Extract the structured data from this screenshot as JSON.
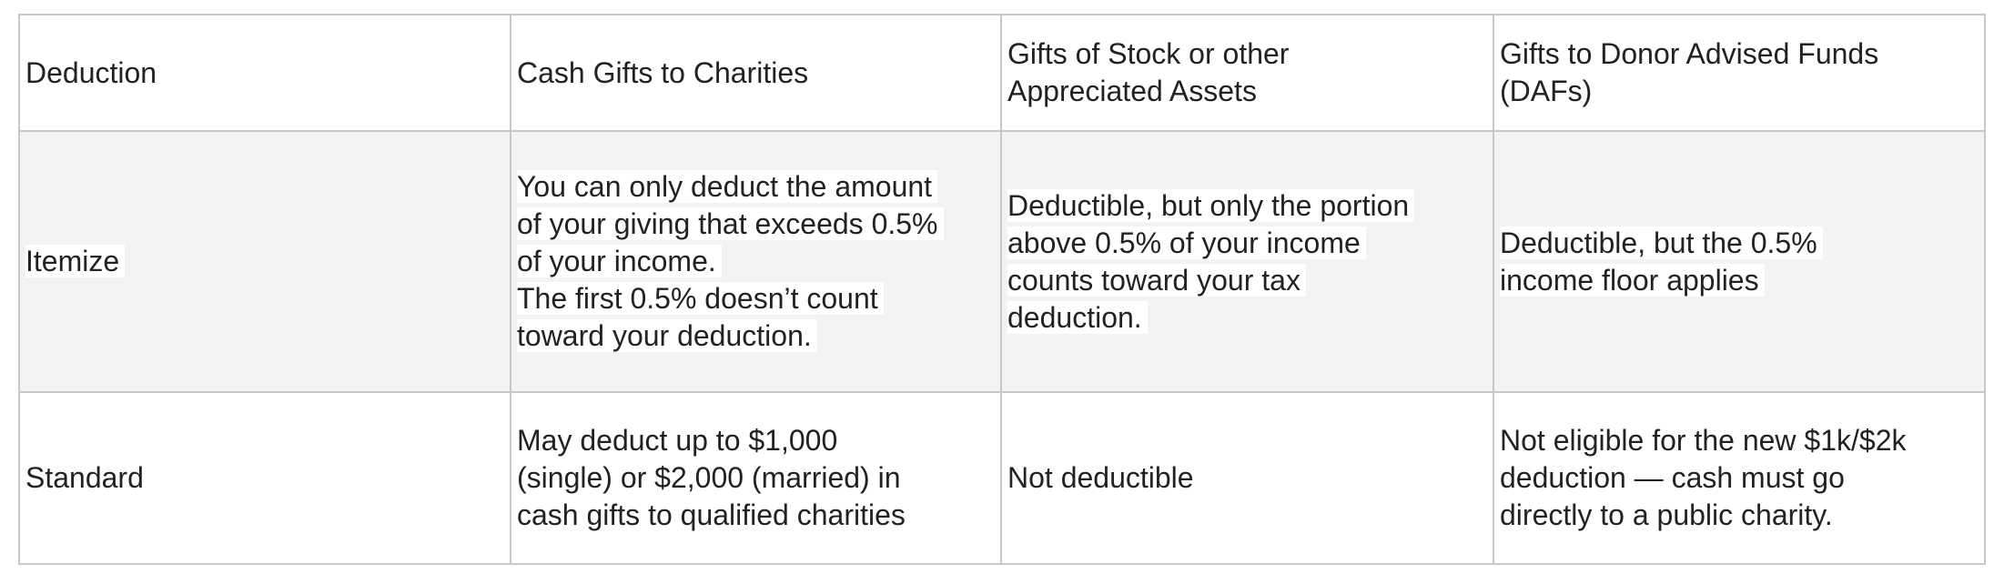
{
  "table": {
    "headers": [
      [
        "Deduction"
      ],
      [
        "Cash Gifts to Charities"
      ],
      [
        "Gifts of Stock or other",
        "Appreciated Assets"
      ],
      [
        "Gifts to Donor Advised Funds",
        "(DAFs)"
      ]
    ],
    "rows": [
      {
        "label": "Itemize",
        "cells": [
          [
            "You can only deduct the amount",
            "of your giving that exceeds 0.5%",
            "of your income.",
            "The first 0.5% doesn’t count",
            "toward your deduction."
          ],
          [
            "Deductible, but only the portion",
            "above 0.5% of your income",
            "counts toward your tax",
            "deduction."
          ],
          [
            "Deductible, but the 0.5%",
            "income floor applies"
          ]
        ]
      },
      {
        "label": "Standard",
        "cells": [
          [
            "May deduct up to $1,000",
            "(single) or $2,000 (married) in",
            "cash gifts to qualified charities"
          ],
          [
            "Not deductible"
          ],
          [
            "Not eligible for the new $1k/$2k",
            "deduction — cash must go",
            "directly to a public charity."
          ]
        ]
      }
    ]
  }
}
